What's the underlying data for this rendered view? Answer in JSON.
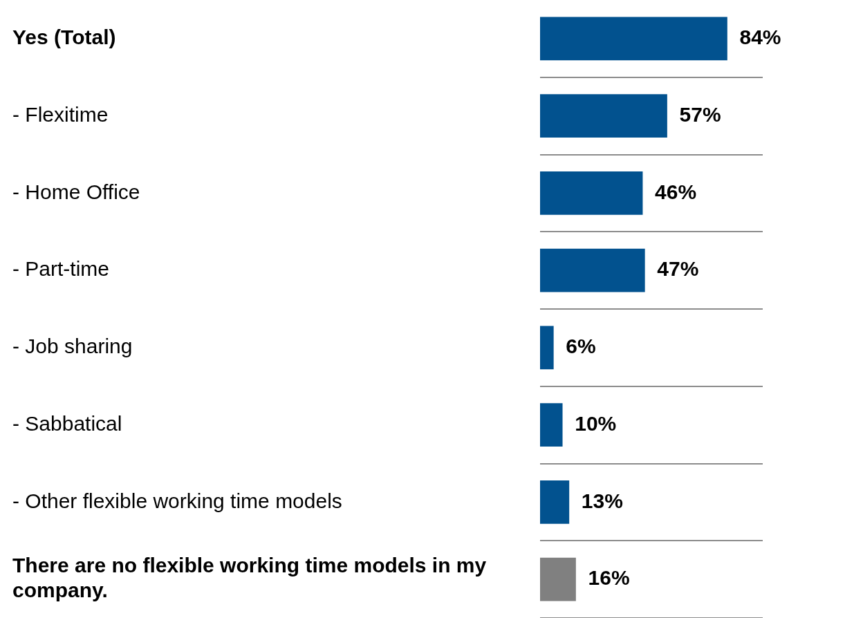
{
  "chart_data": {
    "type": "bar",
    "orientation": "horizontal",
    "categories": [
      "Yes (Total)",
      "- Flexitime",
      "- Home Office",
      "- Part-time",
      "- Job sharing",
      "- Sabbatical",
      "- Other flexible working time models",
      "There are no flexible working time models in my company."
    ],
    "values": [
      84,
      57,
      46,
      47,
      6,
      10,
      13,
      16
    ],
    "value_labels": [
      "84%",
      "57%",
      "46%",
      "47%",
      "6%",
      "10%",
      "13%",
      "16%"
    ],
    "colors": [
      "#02528f",
      "#02528f",
      "#02528f",
      "#02528f",
      "#02528f",
      "#02528f",
      "#02528f",
      "#808080"
    ],
    "tick_labels": "y",
    "grid": "y",
    "legend": false
  }
}
